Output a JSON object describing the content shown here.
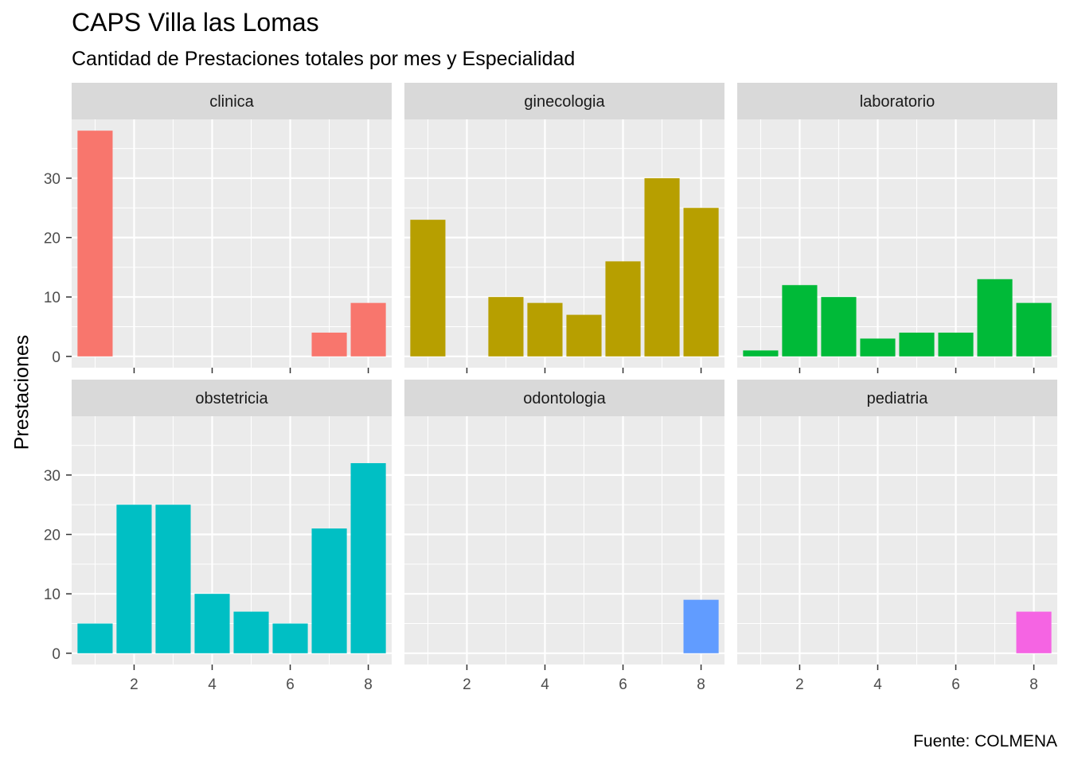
{
  "chart_data": {
    "type": "bar",
    "title": "CAPS Villa las Lomas",
    "subtitle": "Cantidad de Prestaciones totales por mes y Especialidad",
    "caption": "Fuente: COLMENA",
    "ylabel": "Prestaciones",
    "xlabel": "",
    "x_ticks": [
      2,
      4,
      6,
      8
    ],
    "y_ticks": [
      0,
      10,
      20,
      30
    ],
    "xlim": [
      0.4,
      8.6
    ],
    "ylim": [
      -1.9,
      39.9
    ],
    "grid": true,
    "legend": "none",
    "facets": [
      {
        "name": "clinica",
        "color": "#F8766D",
        "x": [
          1,
          2,
          3,
          4,
          5,
          6,
          7,
          8
        ],
        "values": [
          38,
          0,
          0,
          0,
          0,
          0,
          4,
          9
        ]
      },
      {
        "name": "ginecologia",
        "color": "#B79F00",
        "x": [
          1,
          2,
          3,
          4,
          5,
          6,
          7,
          8
        ],
        "values": [
          23,
          0,
          10,
          9,
          7,
          16,
          30,
          25
        ]
      },
      {
        "name": "laboratorio",
        "color": "#00BA38",
        "x": [
          1,
          2,
          3,
          4,
          5,
          6,
          7,
          8
        ],
        "values": [
          1,
          12,
          10,
          3,
          4,
          4,
          13,
          9
        ]
      },
      {
        "name": "obstetricia",
        "color": "#00BFC4",
        "x": [
          1,
          2,
          3,
          4,
          5,
          6,
          7,
          8
        ],
        "values": [
          5,
          25,
          25,
          10,
          7,
          5,
          21,
          32
        ]
      },
      {
        "name": "odontologia",
        "color": "#619CFF",
        "x": [
          1,
          2,
          3,
          4,
          5,
          6,
          7,
          8
        ],
        "values": [
          0,
          0,
          0,
          0,
          0,
          0,
          0,
          9
        ]
      },
      {
        "name": "pediatria",
        "color": "#F564E3",
        "x": [
          1,
          2,
          3,
          4,
          5,
          6,
          7,
          8
        ],
        "values": [
          0,
          0,
          0,
          0,
          0,
          0,
          0,
          7
        ]
      }
    ]
  }
}
